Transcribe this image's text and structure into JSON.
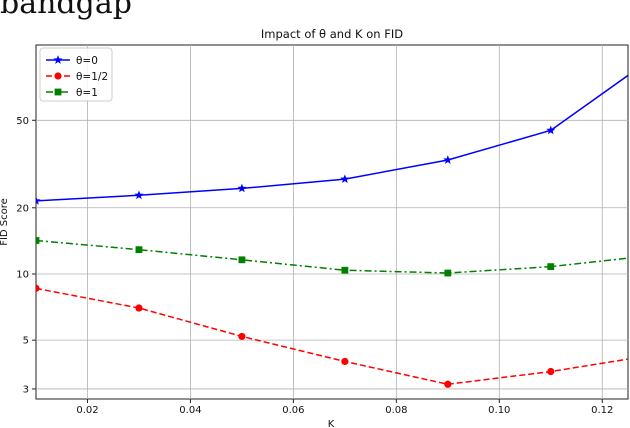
{
  "page_header": "bandgap",
  "chart_data": {
    "type": "line",
    "title": "Impact of θ and K on FID",
    "xlabel": "K",
    "ylabel": "FID Score",
    "xlim": [
      0.01,
      0.125
    ],
    "ylim": [
      2.7,
      110
    ],
    "yscale": "log",
    "grid": true,
    "legend_position": "top-left",
    "x_ticks": [
      0.02,
      0.04,
      0.06,
      0.08,
      0.1,
      0.12
    ],
    "x_tick_labels": [
      "0.02",
      "0.04",
      "0.06",
      "0.08",
      "0.10",
      "0.12"
    ],
    "y_ticks": [
      3,
      5,
      10,
      20,
      50
    ],
    "y_tick_labels": [
      "3",
      "5",
      "10",
      "20",
      "50"
    ],
    "series": [
      {
        "name": "θ=0",
        "color": "#0000ff",
        "linestyle": "solid",
        "marker": "star",
        "x": [
          0.01,
          0.03,
          0.05,
          0.07,
          0.09,
          0.11,
          0.125
        ],
        "y": [
          21.5,
          22.8,
          24.5,
          27.0,
          33.0,
          45.0,
          80.0
        ]
      },
      {
        "name": "θ=1/2",
        "color": "#ff0000",
        "linestyle": "dashed",
        "marker": "circle",
        "x": [
          0.01,
          0.03,
          0.05,
          0.07,
          0.09,
          0.11,
          0.125
        ],
        "y": [
          8.6,
          7.0,
          5.2,
          4.0,
          3.15,
          3.6,
          4.1
        ]
      },
      {
        "name": "θ=1",
        "color": "#008000",
        "linestyle": "dashdot",
        "marker": "square",
        "x": [
          0.01,
          0.03,
          0.05,
          0.07,
          0.09,
          0.11,
          0.125
        ],
        "y": [
          14.2,
          12.9,
          11.6,
          10.4,
          10.1,
          10.8,
          11.8
        ]
      }
    ]
  }
}
